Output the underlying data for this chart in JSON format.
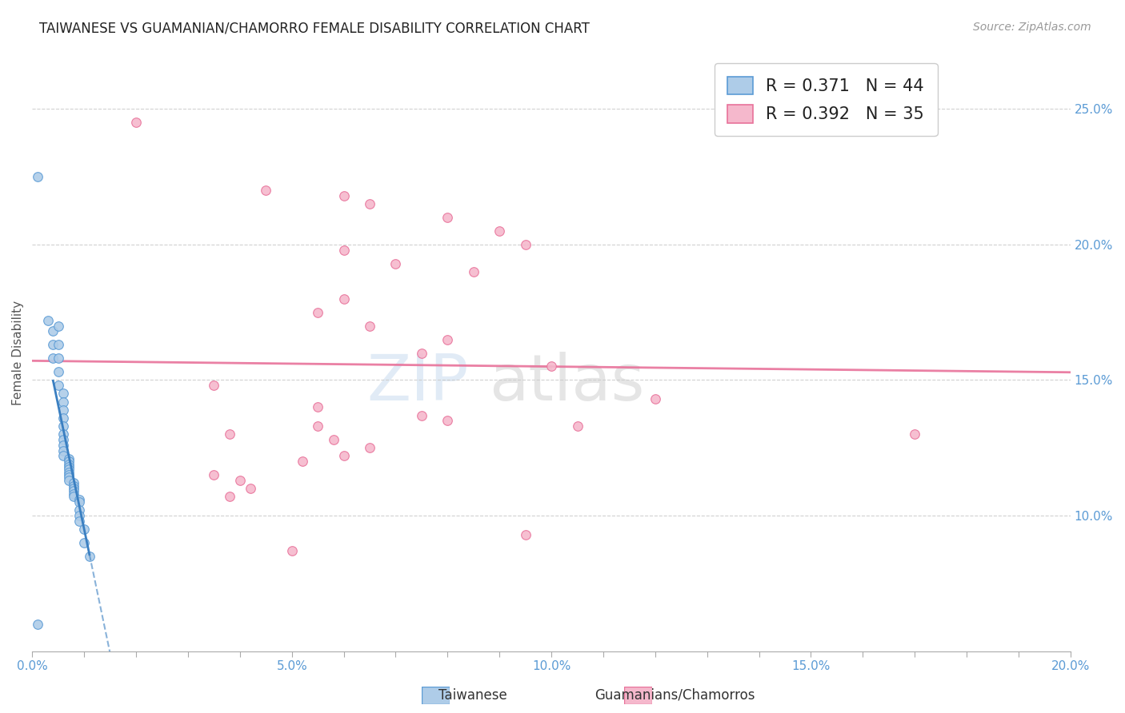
{
  "title": "TAIWANESE VS GUAMANIAN/CHAMORRO FEMALE DISABILITY CORRELATION CHART",
  "source": "Source: ZipAtlas.com",
  "ylabel": "Female Disability",
  "watermark": "ZIPatlas",
  "xlim": [
    0.0,
    0.2
  ],
  "ylim": [
    0.05,
    0.27
  ],
  "xtick_labels": [
    "0.0%",
    "",
    "",
    "",
    "",
    "5.0%",
    "",
    "",
    "",
    "",
    "10.0%",
    "",
    "",
    "",
    "",
    "15.0%",
    "",
    "",
    "",
    "",
    "20.0%"
  ],
  "xtick_vals": [
    0.0,
    0.01,
    0.02,
    0.03,
    0.04,
    0.05,
    0.06,
    0.07,
    0.08,
    0.09,
    0.1,
    0.11,
    0.12,
    0.13,
    0.14,
    0.15,
    0.16,
    0.17,
    0.18,
    0.19,
    0.2
  ],
  "ytick_labels_right": [
    "10.0%",
    "15.0%",
    "20.0%",
    "25.0%"
  ],
  "ytick_vals": [
    0.1,
    0.15,
    0.2,
    0.25
  ],
  "taiwan_R": 0.371,
  "taiwan_N": 44,
  "guam_R": 0.392,
  "guam_N": 35,
  "taiwan_color": "#aecce8",
  "guam_color": "#f5b8cc",
  "taiwan_edge_color": "#5b9bd5",
  "guam_edge_color": "#e8729a",
  "taiwan_line_color": "#3a7fc1",
  "guam_line_color": "#e8729a",
  "taiwan_scatter": [
    [
      0.001,
      0.225
    ],
    [
      0.003,
      0.172
    ],
    [
      0.004,
      0.168
    ],
    [
      0.004,
      0.163
    ],
    [
      0.004,
      0.158
    ],
    [
      0.005,
      0.17
    ],
    [
      0.005,
      0.163
    ],
    [
      0.005,
      0.158
    ],
    [
      0.005,
      0.153
    ],
    [
      0.005,
      0.148
    ],
    [
      0.006,
      0.145
    ],
    [
      0.006,
      0.142
    ],
    [
      0.006,
      0.139
    ],
    [
      0.006,
      0.136
    ],
    [
      0.006,
      0.133
    ],
    [
      0.006,
      0.13
    ],
    [
      0.006,
      0.128
    ],
    [
      0.006,
      0.126
    ],
    [
      0.006,
      0.124
    ],
    [
      0.006,
      0.122
    ],
    [
      0.007,
      0.121
    ],
    [
      0.007,
      0.12
    ],
    [
      0.007,
      0.119
    ],
    [
      0.007,
      0.118
    ],
    [
      0.007,
      0.117
    ],
    [
      0.007,
      0.116
    ],
    [
      0.007,
      0.115
    ],
    [
      0.007,
      0.114
    ],
    [
      0.007,
      0.113
    ],
    [
      0.008,
      0.112
    ],
    [
      0.008,
      0.111
    ],
    [
      0.008,
      0.11
    ],
    [
      0.008,
      0.109
    ],
    [
      0.008,
      0.108
    ],
    [
      0.008,
      0.107
    ],
    [
      0.009,
      0.106
    ],
    [
      0.009,
      0.105
    ],
    [
      0.009,
      0.102
    ],
    [
      0.009,
      0.1
    ],
    [
      0.009,
      0.098
    ],
    [
      0.01,
      0.095
    ],
    [
      0.01,
      0.09
    ],
    [
      0.011,
      0.085
    ],
    [
      0.001,
      0.06
    ]
  ],
  "guam_scatter": [
    [
      0.02,
      0.245
    ],
    [
      0.045,
      0.22
    ],
    [
      0.06,
      0.218
    ],
    [
      0.065,
      0.215
    ],
    [
      0.08,
      0.21
    ],
    [
      0.09,
      0.205
    ],
    [
      0.095,
      0.2
    ],
    [
      0.06,
      0.198
    ],
    [
      0.07,
      0.193
    ],
    [
      0.085,
      0.19
    ],
    [
      0.06,
      0.18
    ],
    [
      0.055,
      0.175
    ],
    [
      0.065,
      0.17
    ],
    [
      0.08,
      0.165
    ],
    [
      0.075,
      0.16
    ],
    [
      0.1,
      0.155
    ],
    [
      0.035,
      0.148
    ],
    [
      0.12,
      0.143
    ],
    [
      0.055,
      0.14
    ],
    [
      0.075,
      0.137
    ],
    [
      0.08,
      0.135
    ],
    [
      0.055,
      0.133
    ],
    [
      0.038,
      0.13
    ],
    [
      0.058,
      0.128
    ],
    [
      0.065,
      0.125
    ],
    [
      0.06,
      0.122
    ],
    [
      0.052,
      0.12
    ],
    [
      0.035,
      0.115
    ],
    [
      0.04,
      0.113
    ],
    [
      0.042,
      0.11
    ],
    [
      0.038,
      0.107
    ],
    [
      0.17,
      0.13
    ],
    [
      0.095,
      0.093
    ],
    [
      0.05,
      0.087
    ],
    [
      0.105,
      0.133
    ]
  ],
  "title_fontsize": 12,
  "axis_label_fontsize": 11,
  "tick_fontsize": 11,
  "legend_fontsize": 15,
  "source_fontsize": 10,
  "background_color": "#ffffff",
  "grid_color": "#cccccc"
}
